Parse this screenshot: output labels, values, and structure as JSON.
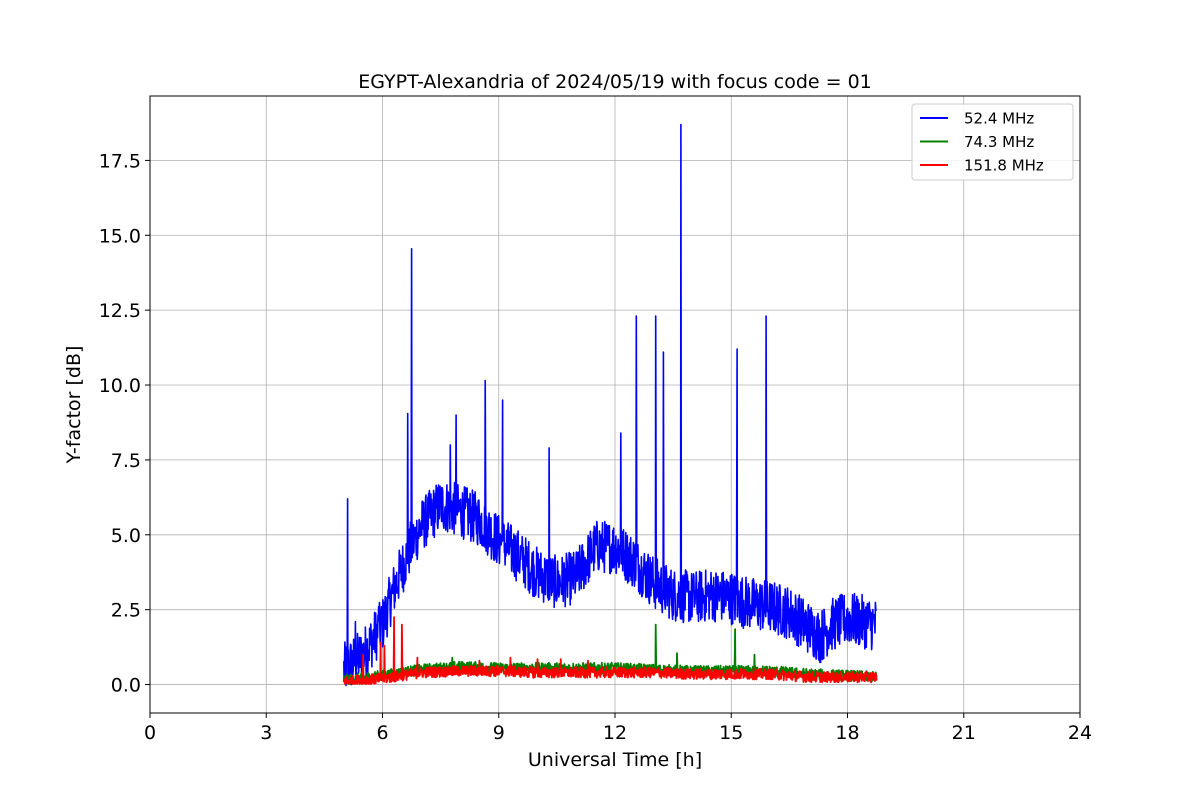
{
  "chart_data": {
    "type": "line",
    "title": "EGYPT-Alexandria of 2024/05/19 with focus code = 01",
    "xlabel": "Universal Time [h]",
    "ylabel": "Y-factor [dB]",
    "xlim": [
      0,
      24
    ],
    "ylim": [
      -0.95,
      19.65
    ],
    "xticks": [
      0,
      3,
      6,
      9,
      12,
      15,
      18,
      21,
      24
    ],
    "xtick_labels": [
      "0",
      "3",
      "6",
      "9",
      "12",
      "15",
      "18",
      "21",
      "24"
    ],
    "yticks": [
      0,
      2.5,
      5,
      7.5,
      10,
      12.5,
      15,
      17.5
    ],
    "ytick_labels": [
      "0.0",
      "2.5",
      "5.0",
      "7.5",
      "10.0",
      "12.5",
      "15.0",
      "17.5"
    ],
    "grid": true,
    "legend_position": "top-right",
    "series": [
      {
        "name": "52.4 MHz",
        "color": "#0000ff",
        "baseline": [
          [
            5.0,
            0.5
          ],
          [
            5.5,
            1.0
          ],
          [
            6.0,
            2.0
          ],
          [
            6.3,
            3.2
          ],
          [
            6.7,
            4.5
          ],
          [
            7.0,
            5.3
          ],
          [
            7.5,
            6.0
          ],
          [
            8.0,
            5.8
          ],
          [
            8.5,
            5.5
          ],
          [
            9.0,
            4.8
          ],
          [
            9.5,
            4.3
          ],
          [
            10.0,
            3.7
          ],
          [
            10.5,
            3.4
          ],
          [
            11.0,
            3.6
          ],
          [
            11.5,
            4.6
          ],
          [
            12.0,
            4.6
          ],
          [
            12.5,
            4.1
          ],
          [
            13.0,
            3.4
          ],
          [
            13.5,
            3.0
          ],
          [
            14.0,
            2.9
          ],
          [
            14.5,
            3.0
          ],
          [
            15.0,
            2.9
          ],
          [
            15.5,
            2.7
          ],
          [
            16.0,
            2.6
          ],
          [
            16.5,
            2.4
          ],
          [
            17.0,
            1.9
          ],
          [
            17.3,
            1.6
          ],
          [
            17.6,
            2.0
          ],
          [
            18.0,
            2.2
          ],
          [
            18.4,
            2.1
          ],
          [
            18.75,
            2.0
          ]
        ],
        "spikes": [
          [
            5.1,
            6.2
          ],
          [
            5.3,
            2.1
          ],
          [
            5.9,
            2.6
          ],
          [
            6.65,
            9.05
          ],
          [
            6.75,
            14.55
          ],
          [
            7.75,
            8.0
          ],
          [
            7.9,
            9.0
          ],
          [
            8.65,
            10.15
          ],
          [
            9.1,
            9.5
          ],
          [
            10.3,
            7.9
          ],
          [
            12.15,
            8.4
          ],
          [
            12.55,
            12.3
          ],
          [
            13.05,
            12.3
          ],
          [
            13.25,
            11.1
          ],
          [
            13.7,
            18.7
          ],
          [
            15.15,
            11.2
          ],
          [
            15.9,
            12.3
          ]
        ]
      },
      {
        "name": "74.3 MHz",
        "color": "#008000",
        "baseline": [
          [
            5.0,
            0.15
          ],
          [
            6.0,
            0.3
          ],
          [
            7.0,
            0.5
          ],
          [
            8.0,
            0.6
          ],
          [
            9.0,
            0.55
          ],
          [
            10.0,
            0.55
          ],
          [
            11.0,
            0.55
          ],
          [
            12.0,
            0.55
          ],
          [
            13.0,
            0.5
          ],
          [
            14.0,
            0.45
          ],
          [
            15.0,
            0.45
          ],
          [
            16.0,
            0.45
          ],
          [
            17.0,
            0.35
          ],
          [
            18.0,
            0.3
          ],
          [
            18.75,
            0.25
          ]
        ],
        "spikes": [
          [
            7.8,
            0.9
          ],
          [
            13.05,
            2.0
          ],
          [
            13.6,
            1.05
          ],
          [
            15.1,
            1.85
          ],
          [
            15.6,
            1.0
          ]
        ]
      },
      {
        "name": "151.8 MHz",
        "color": "#ff0000",
        "baseline": [
          [
            5.0,
            0.1
          ],
          [
            6.0,
            0.2
          ],
          [
            7.0,
            0.4
          ],
          [
            8.0,
            0.45
          ],
          [
            9.0,
            0.45
          ],
          [
            10.0,
            0.4
          ],
          [
            11.0,
            0.4
          ],
          [
            12.0,
            0.4
          ],
          [
            13.0,
            0.4
          ],
          [
            14.0,
            0.35
          ],
          [
            15.0,
            0.35
          ],
          [
            16.0,
            0.35
          ],
          [
            17.0,
            0.25
          ],
          [
            18.0,
            0.25
          ],
          [
            18.75,
            0.25
          ]
        ],
        "spikes": [
          [
            5.5,
            1.0
          ],
          [
            5.95,
            1.4
          ],
          [
            6.05,
            1.3
          ],
          [
            6.3,
            2.25
          ],
          [
            6.5,
            2.0
          ],
          [
            6.9,
            0.9
          ],
          [
            8.5,
            0.8
          ],
          [
            9.3,
            0.9
          ],
          [
            10.0,
            0.85
          ],
          [
            10.6,
            0.85
          ],
          [
            11.3,
            0.8
          ]
        ]
      }
    ]
  }
}
